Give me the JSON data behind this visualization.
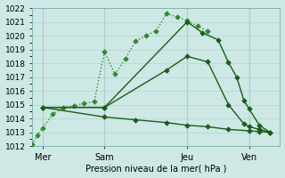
{
  "xlabel": "Pression niveau de la mer( hPa )",
  "ylim": [
    1012,
    1022
  ],
  "yticks": [
    1012,
    1013,
    1014,
    1015,
    1016,
    1017,
    1018,
    1019,
    1020,
    1021,
    1022
  ],
  "bg_color": "#cde8e5",
  "grid_color": "#b8d8d5",
  "line_color_dark": "#1a5c1a",
  "line_color_bright": "#2e8b2e",
  "xlim": [
    0,
    24
  ],
  "xtick_labels": [
    "Mer",
    "Sam",
    "Jeu",
    "Ven"
  ],
  "xtick_positions": [
    1,
    7,
    15,
    21
  ],
  "vline_positions": [
    1,
    7,
    15,
    21
  ],
  "lines": [
    {
      "x": [
        0.0,
        0.5,
        1.0,
        2.0,
        3.0,
        4.0,
        5.0,
        6.0,
        7.0,
        8.0,
        9.0,
        10.0,
        11.0,
        12.0,
        13.0,
        14.0,
        15.0,
        16.0,
        17.0
      ],
      "y": [
        1012.1,
        1012.8,
        1013.3,
        1014.3,
        1014.8,
        1014.9,
        1015.1,
        1015.2,
        1018.85,
        1017.2,
        1018.3,
        1019.6,
        1020.0,
        1020.35,
        1021.6,
        1021.35,
        1021.1,
        1020.7,
        1020.3
      ],
      "style": "dotted",
      "lw": 1.0,
      "marker": "D",
      "markersize": 2.8,
      "color": "#2e8b2e"
    },
    {
      "x": [
        1.0,
        7.0,
        15.0,
        16.5,
        18.0,
        19.0,
        19.8,
        20.5,
        21.0,
        22.0,
        23.0
      ],
      "y": [
        1014.8,
        1014.8,
        1021.0,
        1020.2,
        1019.7,
        1018.05,
        1017.0,
        1015.3,
        1014.7,
        1013.5,
        1013.0
      ],
      "style": "solid",
      "lw": 1.0,
      "marker": "D",
      "markersize": 2.8,
      "color": "#1a5c1a"
    },
    {
      "x": [
        1.0,
        7.0,
        13.0,
        15.0,
        17.0,
        19.0,
        20.5,
        21.0,
        22.0,
        23.0
      ],
      "y": [
        1014.8,
        1014.8,
        1017.5,
        1018.5,
        1018.1,
        1015.0,
        1013.6,
        1013.4,
        1013.2,
        1013.0
      ],
      "style": "solid",
      "lw": 1.0,
      "marker": "D",
      "markersize": 2.8,
      "color": "#1a5c1a"
    },
    {
      "x": [
        1.0,
        7.0,
        10.0,
        13.0,
        15.0,
        17.0,
        19.0,
        21.0,
        22.0,
        23.0
      ],
      "y": [
        1014.8,
        1014.1,
        1013.9,
        1013.7,
        1013.5,
        1013.4,
        1013.2,
        1013.1,
        1013.05,
        1013.0
      ],
      "style": "solid",
      "lw": 1.0,
      "marker": "D",
      "markersize": 2.8,
      "color": "#1a5c1a"
    }
  ]
}
